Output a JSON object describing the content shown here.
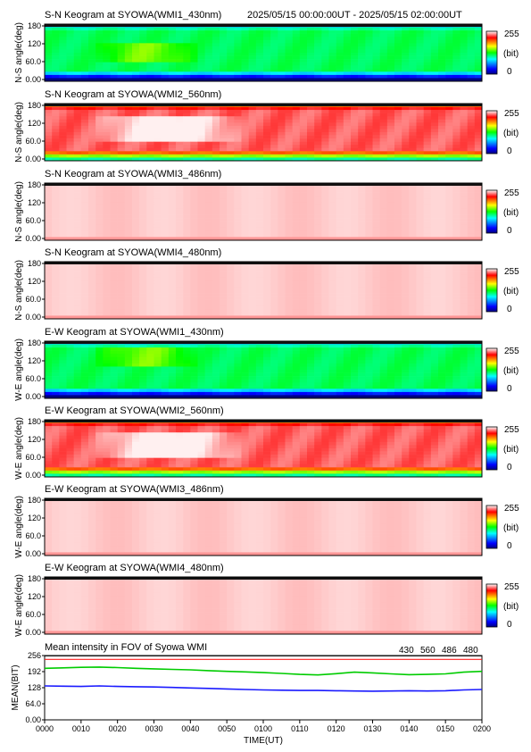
{
  "header": {
    "time_range": "2025/05/15 00:00:00UT - 2025/05/15 02:00:00UT"
  },
  "colorbar": {
    "max_label": "255",
    "unit_label": "(bit)",
    "min_label": "0"
  },
  "chart_data": [
    {
      "type": "heatmap",
      "title": "S-N Keogram at SYOWA(WMI1_430nm)",
      "ylabel": "N-S angle(deg)",
      "ylim": [
        0,
        180
      ],
      "yticks": [
        "0.00",
        "60.0",
        "120",
        "180"
      ],
      "level": 0.45,
      "colormap": "rainbow",
      "scale": [
        0,
        255
      ],
      "bright_patch": {
        "x": [
          0.1,
          0.35
        ],
        "y": [
          60,
          120
        ]
      }
    },
    {
      "type": "heatmap",
      "title": "S-N Keogram at SYOWA(WMI2_560nm)",
      "ylabel": "N-S angle(deg)",
      "ylim": [
        0,
        180
      ],
      "yticks": [
        "0.00",
        "60.0",
        "120",
        "180"
      ],
      "level": 0.9,
      "colormap": "rainbow",
      "scale": [
        0,
        255
      ],
      "saturated_patch": {
        "x": [
          0.1,
          0.45
        ],
        "y": [
          60,
          140
        ]
      }
    },
    {
      "type": "heatmap",
      "title": "S-N Keogram at SYOWA(WMI3_486nm)",
      "ylabel": "N-S angle(deg)",
      "ylim": [
        0,
        180
      ],
      "yticks": [
        "0.00",
        "60.0",
        "120",
        "180"
      ],
      "level": 1.0,
      "colormap": "rainbow",
      "scale": [
        0,
        255
      ]
    },
    {
      "type": "heatmap",
      "title": "S-N Keogram at SYOWA(WMI4_480nm)",
      "ylabel": "N-S angle(deg)",
      "ylim": [
        0,
        180
      ],
      "yticks": [
        "0.00",
        "60.0",
        "120",
        "180"
      ],
      "level": 1.0,
      "colormap": "rainbow",
      "scale": [
        0,
        255
      ]
    },
    {
      "type": "heatmap",
      "title": "E-W Keogram at SYOWA(WMI1_430nm)",
      "ylabel": "W-E angle(deg)",
      "ylim": [
        0,
        180
      ],
      "yticks": [
        "0.00",
        "60.0",
        "120",
        "180"
      ],
      "level": 0.45,
      "colormap": "rainbow",
      "scale": [
        0,
        255
      ],
      "bright_patch": {
        "x": [
          0.1,
          0.35
        ],
        "y": [
          100,
          160
        ]
      }
    },
    {
      "type": "heatmap",
      "title": "E-W Keogram at SYOWA(WMI2_560nm)",
      "ylabel": "W-E angle(deg)",
      "ylim": [
        0,
        180
      ],
      "yticks": [
        "0.00",
        "60.0",
        "120",
        "180"
      ],
      "level": 0.9,
      "colormap": "rainbow",
      "scale": [
        0,
        255
      ],
      "saturated_patch": {
        "x": [
          0.1,
          0.45
        ],
        "y": [
          60,
          140
        ]
      }
    },
    {
      "type": "heatmap",
      "title": "E-W Keogram at SYOWA(WMI3_486nm)",
      "ylabel": "W-E angle(deg)",
      "ylim": [
        0,
        180
      ],
      "yticks": [
        "0.00",
        "60.0",
        "120",
        "180"
      ],
      "level": 1.0,
      "colormap": "rainbow",
      "scale": [
        0,
        255
      ]
    },
    {
      "type": "heatmap",
      "title": "E-W Keogram at SYOWA(WMI4_480nm)",
      "ylabel": "W-E angle(deg)",
      "ylim": [
        0,
        180
      ],
      "yticks": [
        "0.00",
        "60.0",
        "120",
        "180"
      ],
      "level": 1.0,
      "colormap": "rainbow",
      "scale": [
        0,
        255
      ]
    },
    {
      "type": "line",
      "title": "Mean intensity in FOV of Syowa WMI",
      "ylabel": "MEAN(BIT)",
      "xlabel": "TIME(UT)",
      "ylim": [
        0,
        256
      ],
      "yticks": [
        "0.00",
        "64.0",
        "128",
        "192",
        "256"
      ],
      "xlim": [
        0,
        120
      ],
      "xticks": [
        "0000",
        "0010",
        "0020",
        "0030",
        "0040",
        "0050",
        "0100",
        "0110",
        "0120",
        "0130",
        "0140",
        "0150",
        "0200"
      ],
      "legend": [
        {
          "name": "430",
          "color": "#1a1aff"
        },
        {
          "name": "560",
          "color": "#00cc00"
        },
        {
          "name": "486",
          "color": "#ff2020"
        },
        {
          "name": "480",
          "color": "#000000"
        }
      ],
      "series": [
        {
          "name": "430",
          "x": [
            0,
            5,
            10,
            15,
            20,
            25,
            30,
            35,
            40,
            45,
            50,
            55,
            60,
            65,
            70,
            75,
            80,
            85,
            90,
            95,
            100,
            105,
            110,
            115,
            120
          ],
          "values": [
            135,
            134,
            133,
            135,
            133,
            132,
            131,
            129,
            127,
            125,
            123,
            121,
            119,
            118,
            117,
            117,
            116,
            115,
            114,
            115,
            116,
            115,
            116,
            119,
            121
          ]
        },
        {
          "name": "560",
          "x": [
            0,
            5,
            10,
            15,
            20,
            25,
            30,
            35,
            40,
            45,
            50,
            55,
            60,
            65,
            70,
            75,
            80,
            85,
            90,
            95,
            100,
            105,
            110,
            115,
            120
          ],
          "values": [
            205,
            207,
            209,
            210,
            208,
            205,
            203,
            201,
            199,
            196,
            193,
            191,
            188,
            185,
            181,
            179,
            184,
            190,
            187,
            183,
            180,
            181,
            183,
            190,
            193
          ]
        },
        {
          "name": "486",
          "x": [
            0,
            120
          ],
          "values": [
            255,
            255
          ]
        },
        {
          "name": "480",
          "x": [
            0,
            120
          ],
          "values": [
            255,
            255
          ]
        }
      ]
    }
  ]
}
